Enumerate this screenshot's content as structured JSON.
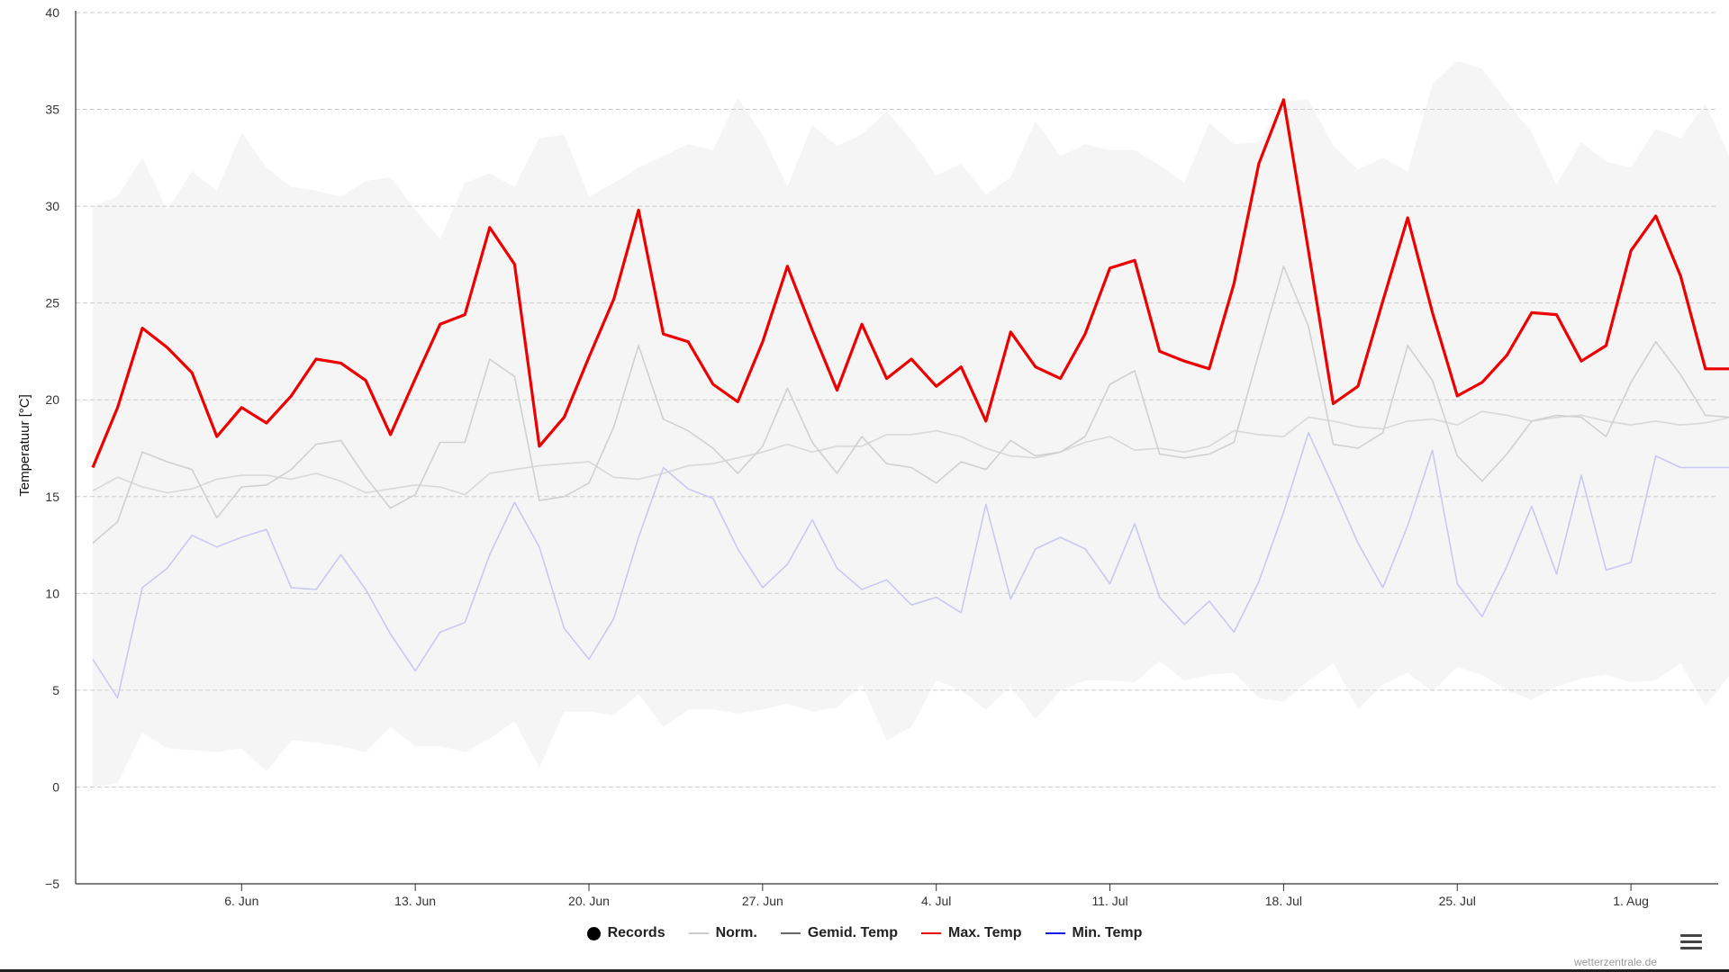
{
  "chart_data": {
    "type": "line",
    "title": "",
    "ylabel": "Temperatuur [°C]",
    "xlabel": "",
    "ylim": [
      -5,
      40
    ],
    "yticks": [
      -5,
      0,
      5,
      10,
      15,
      20,
      25,
      30,
      35,
      40
    ],
    "ytick_labels": [
      "−5",
      "0",
      "5",
      "10",
      "15",
      "20",
      "25",
      "30",
      "35",
      "40"
    ],
    "x": [
      "2024-05-31",
      "2024-06-01",
      "2024-06-02",
      "2024-06-03",
      "2024-06-04",
      "2024-06-05",
      "2024-06-06",
      "2024-06-07",
      "2024-06-08",
      "2024-06-09",
      "2024-06-10",
      "2024-06-11",
      "2024-06-12",
      "2024-06-13",
      "2024-06-14",
      "2024-06-15",
      "2024-06-16",
      "2024-06-17",
      "2024-06-18",
      "2024-06-19",
      "2024-06-20",
      "2024-06-21",
      "2024-06-22",
      "2024-06-23",
      "2024-06-24",
      "2024-06-25",
      "2024-06-26",
      "2024-06-27",
      "2024-06-28",
      "2024-06-29",
      "2024-06-30",
      "2024-07-01",
      "2024-07-02",
      "2024-07-03",
      "2024-07-04",
      "2024-07-05",
      "2024-07-06",
      "2024-07-07",
      "2024-07-08",
      "2024-07-09",
      "2024-07-10",
      "2024-07-11",
      "2024-07-12",
      "2024-07-13",
      "2024-07-14",
      "2024-07-15",
      "2024-07-16",
      "2024-07-17",
      "2024-07-18",
      "2024-07-19",
      "2024-07-20",
      "2024-07-21",
      "2024-07-22",
      "2024-07-23",
      "2024-07-24",
      "2024-07-25",
      "2024-07-26",
      "2024-07-27",
      "2024-07-28",
      "2024-07-29",
      "2024-07-30",
      "2024-07-31",
      "2024-08-01",
      "2024-08-02",
      "2024-08-03",
      "2024-08-04",
      "2024-08-05"
    ],
    "xticks": [
      {
        "date": "2024-06-06",
        "label": "6. Jun"
      },
      {
        "date": "2024-06-13",
        "label": "13. Jun"
      },
      {
        "date": "2024-06-20",
        "label": "20. Jun"
      },
      {
        "date": "2024-06-27",
        "label": "27. Jun"
      },
      {
        "date": "2024-07-04",
        "label": "4. Jul"
      },
      {
        "date": "2024-07-11",
        "label": "11. Jul"
      },
      {
        "date": "2024-07-18",
        "label": "18. Jul"
      },
      {
        "date": "2024-07-25",
        "label": "25. Jul"
      },
      {
        "date": "2024-08-01",
        "label": "1. Aug"
      }
    ],
    "grid": true,
    "legend_position": "bottom-center",
    "series": [
      {
        "name": "Records",
        "kind": "range",
        "color": "#f5f5f5",
        "high": [
          30,
          30.5,
          32.5,
          29.8,
          31.8,
          30.8,
          33.8,
          32.0,
          31.0,
          30.8,
          30.5,
          31.3,
          31.5,
          29.8,
          28.3,
          31.2,
          31.7,
          31.0,
          33.5,
          33.7,
          30.5,
          31.2,
          32.0,
          32.6,
          33.2,
          32.9,
          35.6,
          33.7,
          31.0,
          34.2,
          33.1,
          33.7,
          34.9,
          33.4,
          31.6,
          32.2,
          30.6,
          31.5,
          34.4,
          32.6,
          33.2,
          32.9,
          32.9,
          32.1,
          31.2,
          34.3,
          33.2,
          33.3,
          35.4,
          35.5,
          33.1,
          31.9,
          32.5,
          31.8,
          36.3,
          37.5,
          37.1,
          35.4,
          33.8,
          31.1,
          33.3,
          32.3,
          32.0,
          34.0,
          33.5,
          35.3,
          32.5
        ],
        "low": [
          0,
          0.2,
          2.8,
          2.0,
          1.9,
          1.8,
          2.0,
          0.8,
          2.4,
          2.3,
          2.1,
          1.8,
          3.1,
          2.1,
          2.1,
          1.8,
          2.5,
          3.4,
          1.0,
          3.9,
          3.9,
          3.7,
          4.8,
          3.1,
          4.0,
          4.0,
          3.8,
          4.0,
          4.3,
          3.9,
          4.1,
          5.3,
          2.4,
          3.1,
          5.5,
          5.0,
          4.0,
          5.2,
          3.5,
          5.0,
          5.5,
          5.5,
          5.4,
          6.5,
          5.5,
          5.8,
          5.9,
          4.6,
          4.4,
          5.5,
          6.4,
          4.0,
          5.3,
          5.9,
          4.9,
          6.2,
          5.8,
          5.0,
          4.5,
          5.2,
          5.6,
          5.8,
          5.4,
          5.5,
          6.4,
          4.2,
          5.8
        ]
      },
      {
        "name": "Norm.",
        "kind": "line",
        "color": "#d8d8d8",
        "values": [
          15.3,
          16.0,
          15.5,
          15.2,
          15.4,
          15.9,
          16.1,
          16.1,
          15.9,
          16.2,
          15.8,
          15.2,
          15.4,
          15.6,
          15.5,
          15.1,
          16.2,
          16.4,
          16.6,
          16.7,
          16.8,
          16.0,
          15.9,
          16.2,
          16.6,
          16.7,
          17.0,
          17.3,
          17.7,
          17.3,
          17.6,
          17.6,
          18.2,
          18.2,
          18.4,
          18.1,
          17.5,
          17.1,
          17.0,
          17.3,
          17.8,
          18.1,
          17.4,
          17.5,
          17.3,
          17.6,
          18.4,
          18.2,
          18.1,
          19.1,
          18.9,
          18.6,
          18.5,
          18.9,
          19.0,
          18.7,
          19.4,
          19.2,
          18.9,
          19.1,
          19.2,
          18.9,
          18.7,
          18.9,
          18.7,
          18.8,
          19.1
        ]
      },
      {
        "name": "Gemid. Temp",
        "kind": "line",
        "color": "#d0d0d0",
        "values": [
          12.6,
          13.7,
          17.3,
          16.8,
          16.4,
          13.9,
          15.5,
          15.6,
          16.4,
          17.7,
          17.9,
          16.0,
          14.4,
          15.1,
          17.8,
          17.8,
          22.1,
          21.2,
          14.8,
          15.0,
          15.7,
          18.6,
          22.8,
          19.0,
          18.4,
          17.5,
          16.2,
          17.6,
          20.6,
          17.8,
          16.2,
          18.1,
          16.7,
          16.5,
          15.7,
          16.8,
          16.4,
          17.9,
          17.1,
          17.3,
          18.1,
          20.8,
          21.5,
          17.2,
          17.0,
          17.2,
          17.8,
          22.4,
          26.9,
          23.8,
          17.7,
          17.5,
          18.3,
          22.8,
          21.0,
          17.1,
          15.8,
          17.2,
          18.9,
          19.2,
          19.1,
          18.1,
          20.9,
          23.0,
          21.3,
          19.2,
          19.1
        ],
        "legend_color": "#666666"
      },
      {
        "name": "Max. Temp",
        "kind": "line",
        "color": "#ee0000",
        "width": 3.2,
        "values": [
          16.5,
          19.6,
          23.7,
          22.7,
          21.4,
          18.1,
          19.6,
          18.8,
          20.2,
          22.1,
          21.9,
          21.0,
          18.2,
          21.1,
          23.9,
          24.4,
          28.9,
          27.0,
          17.6,
          19.1,
          22.2,
          25.2,
          29.8,
          23.4,
          23.0,
          20.8,
          19.9,
          23.0,
          26.9,
          23.6,
          20.5,
          23.9,
          21.1,
          22.1,
          20.7,
          21.7,
          18.9,
          23.5,
          21.7,
          21.1,
          23.4,
          26.8,
          27.2,
          22.5,
          22.0,
          21.6,
          26.0,
          32.2,
          35.5,
          27.7,
          19.8,
          20.7,
          25.1,
          29.4,
          24.5,
          20.2,
          20.9,
          22.3,
          24.5,
          24.4,
          22.0,
          22.8,
          27.7,
          29.5,
          26.4,
          21.6,
          21.6
        ],
        "legend_color": "#ee0000"
      },
      {
        "name": "Min. Temp",
        "kind": "line",
        "color": "#c8c8f2",
        "values": [
          6.6,
          4.6,
          10.3,
          11.3,
          13.0,
          12.4,
          12.9,
          13.3,
          10.3,
          10.2,
          12.0,
          10.2,
          7.9,
          6.0,
          8.0,
          8.5,
          12.0,
          14.7,
          12.4,
          8.2,
          6.6,
          8.7,
          12.9,
          16.5,
          15.4,
          14.9,
          12.3,
          10.3,
          11.5,
          13.8,
          11.3,
          10.2,
          10.7,
          9.4,
          9.8,
          9.0,
          14.6,
          9.7,
          12.3,
          12.9,
          12.3,
          10.5,
          13.6,
          9.8,
          8.4,
          9.6,
          8.0,
          10.6,
          14.2,
          18.3,
          15.5,
          12.6,
          10.3,
          13.5,
          17.4,
          10.5,
          8.8,
          11.4,
          14.5,
          11.0,
          16.1,
          11.2,
          11.6,
          17.1,
          16.5,
          16.5,
          16.5
        ],
        "legend_color": "#1a1aee"
      }
    ]
  },
  "legend": [
    {
      "label": "Records",
      "marker": "dot",
      "color": "#000000"
    },
    {
      "label": "Norm.",
      "marker": "line",
      "color": "#cccccc"
    },
    {
      "label": "Gemid. Temp",
      "marker": "line",
      "color": "#666666"
    },
    {
      "label": "Max. Temp",
      "marker": "line",
      "color": "#ee0000"
    },
    {
      "label": "Min. Temp",
      "marker": "line",
      "color": "#1a1aee"
    }
  ],
  "credits": "wetterzentrale.de",
  "menu_icon": "hamburger-menu-icon"
}
